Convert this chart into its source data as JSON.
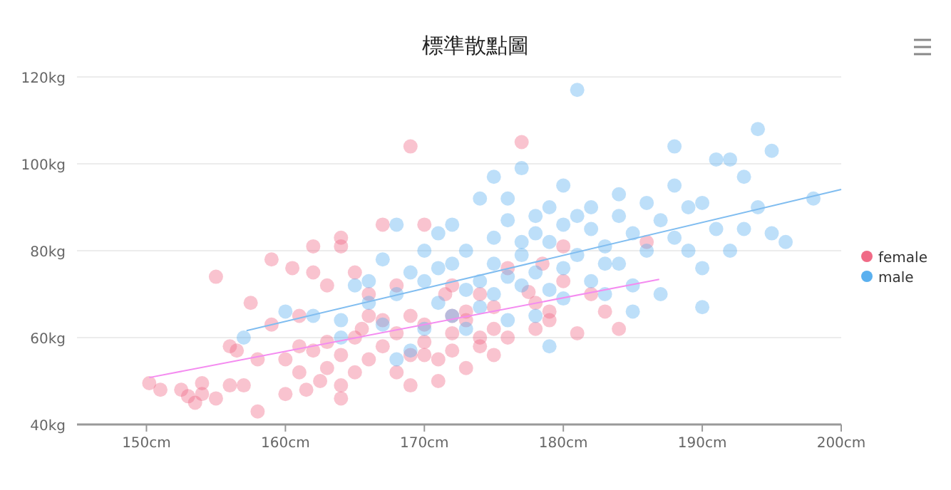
{
  "chart_data": {
    "type": "scatter",
    "title": "標準散點圖",
    "xlim": [
      145,
      200
    ],
    "ylim": [
      40,
      120
    ],
    "xticks": [
      {
        "value": 150,
        "label": "150cm"
      },
      {
        "value": 160,
        "label": "160cm"
      },
      {
        "value": 170,
        "label": "170cm"
      },
      {
        "value": 180,
        "label": "180cm"
      },
      {
        "value": 190,
        "label": "190cm"
      },
      {
        "value": 200,
        "label": "200cm"
      }
    ],
    "yticks": [
      {
        "value": 40,
        "label": "40kg"
      },
      {
        "value": 60,
        "label": "60kg"
      },
      {
        "value": 80,
        "label": "80kg"
      },
      {
        "value": 100,
        "label": "100kg"
      },
      {
        "value": 120,
        "label": "120kg"
      }
    ],
    "grid": "y",
    "legend": "right",
    "marker": "circle",
    "series": [
      {
        "name": "female",
        "color": "#f06a86",
        "x": [
          150.2,
          151,
          152.5,
          153,
          153.5,
          154,
          154,
          155,
          156,
          156.5,
          155,
          156,
          157,
          158,
          157.5,
          159,
          159,
          160,
          160,
          161,
          161,
          161,
          160.5,
          162,
          162,
          161.5,
          162.5,
          163,
          163,
          163,
          164,
          164,
          164,
          164,
          164,
          165,
          165,
          165,
          165.5,
          166,
          166,
          167,
          167,
          167,
          168,
          168,
          168,
          169,
          169,
          169,
          169,
          170,
          170,
          170,
          171,
          171,
          171.5,
          172,
          172,
          172,
          173,
          173,
          173,
          174,
          174,
          174,
          175,
          175,
          175,
          176,
          176,
          177.5,
          177,
          178,
          178.5,
          179,
          179,
          180,
          180,
          181,
          182,
          183,
          184,
          186,
          178,
          166,
          158,
          162,
          170,
          172
        ],
        "values": [
          49.5,
          48,
          48,
          46.5,
          45,
          49.5,
          47,
          46,
          58,
          57,
          74,
          49,
          49,
          43,
          68,
          78,
          63,
          55,
          47,
          52,
          58,
          65,
          76,
          75,
          81,
          48,
          50,
          53,
          59,
          72,
          81,
          83,
          56,
          49,
          46,
          52,
          60,
          75,
          62,
          55,
          65,
          58,
          86,
          64,
          52,
          61,
          72,
          49,
          56,
          65,
          104,
          59,
          86,
          63,
          50,
          55,
          70,
          61,
          72,
          57,
          53,
          64,
          66,
          58,
          60,
          70,
          56,
          62,
          67,
          76,
          60,
          70.5,
          105,
          68,
          77,
          66,
          64,
          73,
          81,
          61,
          70,
          66,
          62,
          82,
          62,
          70,
          55,
          57,
          56,
          65
        ]
      },
      {
        "name": "male",
        "color": "#5ab0ef",
        "x": [
          157,
          160,
          162,
          164,
          164,
          165,
          166,
          166,
          167,
          167,
          168,
          168,
          168,
          169,
          169,
          170,
          170,
          170,
          171,
          171,
          171,
          172,
          172,
          172,
          173,
          173,
          173,
          174,
          174,
          174,
          175,
          175,
          175,
          175,
          176,
          176,
          176,
          176,
          177,
          177,
          177,
          177,
          178,
          178,
          178,
          178,
          179,
          179,
          179,
          179,
          180,
          180,
          180,
          180,
          181,
          181,
          181,
          182,
          182,
          182,
          183,
          183,
          183,
          184,
          184,
          184,
          185,
          185,
          185,
          186,
          186,
          187,
          187,
          188,
          188,
          188,
          189,
          189,
          190,
          190,
          190,
          191,
          191,
          192,
          192,
          193,
          193,
          194,
          194,
          195,
          195,
          196,
          198
        ],
        "values": [
          60,
          66,
          65,
          64,
          60,
          72,
          68,
          73,
          63,
          78,
          70,
          55,
          86,
          75,
          57,
          62,
          73,
          80,
          68,
          76,
          84,
          65,
          77,
          86,
          71,
          80,
          62,
          73,
          92,
          67,
          77,
          70,
          97,
          83,
          74,
          87,
          64,
          92,
          79,
          72,
          82,
          99,
          88,
          75,
          65,
          84,
          71,
          82,
          58,
          90,
          76,
          86,
          69,
          95,
          117,
          79,
          88,
          73,
          85,
          90,
          77,
          81,
          70,
          88,
          93,
          77,
          72,
          84,
          66,
          80,
          91,
          70,
          87,
          95,
          83,
          104,
          80,
          90,
          76,
          91,
          67,
          85,
          101,
          101,
          80,
          97,
          85,
          108,
          90,
          103,
          84,
          82,
          92
        ]
      },
      {
        "type": "line",
        "marker": "none",
        "color": "#f48cf0",
        "x": [
          150.2,
          186.9
        ],
        "values": [
          50.8,
          73.4
        ]
      },
      {
        "type": "line",
        "marker": "none",
        "color": "#80bdf0",
        "x": [
          157.2,
          200
        ],
        "values": [
          61.6,
          94.1
        ]
      }
    ]
  }
}
